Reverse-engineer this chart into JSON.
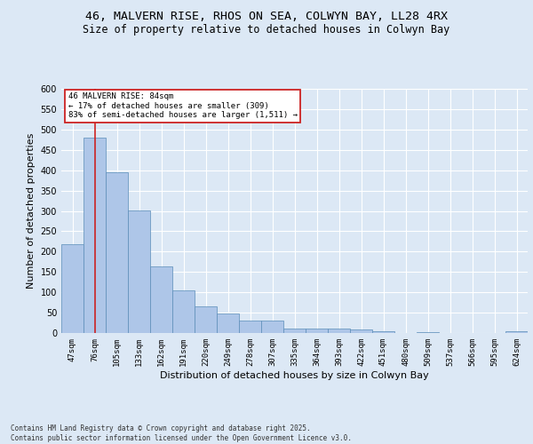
{
  "title_line1": "46, MALVERN RISE, RHOS ON SEA, COLWYN BAY, LL28 4RX",
  "title_line2": "Size of property relative to detached houses in Colwyn Bay",
  "xlabel": "Distribution of detached houses by size in Colwyn Bay",
  "ylabel": "Number of detached properties",
  "categories": [
    "47sqm",
    "76sqm",
    "105sqm",
    "133sqm",
    "162sqm",
    "191sqm",
    "220sqm",
    "249sqm",
    "278sqm",
    "307sqm",
    "335sqm",
    "364sqm",
    "393sqm",
    "422sqm",
    "451sqm",
    "480sqm",
    "509sqm",
    "537sqm",
    "566sqm",
    "595sqm",
    "624sqm"
  ],
  "values": [
    219,
    480,
    395,
    302,
    163,
    105,
    65,
    47,
    31,
    31,
    10,
    10,
    10,
    8,
    5,
    0,
    3,
    0,
    0,
    0,
    5
  ],
  "bar_color": "#aec6e8",
  "bar_edge_color": "#5b8db8",
  "background_color": "#dce8f5",
  "grid_color": "#ffffff",
  "fig_background": "#dce8f5",
  "vline_index": 1,
  "vline_color": "#cc2222",
  "annotation_line1": "46 MALVERN RISE: 84sqm",
  "annotation_line2": "← 17% of detached houses are smaller (309)",
  "annotation_line3": "83% of semi-detached houses are larger (1,511) →",
  "annotation_box_edgecolor": "#cc2222",
  "ylim": [
    0,
    600
  ],
  "yticks": [
    0,
    50,
    100,
    150,
    200,
    250,
    300,
    350,
    400,
    450,
    500,
    550,
    600
  ],
  "footnote_line1": "Contains HM Land Registry data © Crown copyright and database right 2025.",
  "footnote_line2": "Contains public sector information licensed under the Open Government Licence v3.0.",
  "title1_fontsize": 9.5,
  "title2_fontsize": 8.5,
  "ylabel_fontsize": 8,
  "xlabel_fontsize": 8,
  "ytick_fontsize": 7,
  "xtick_fontsize": 6.5,
  "annotation_fontsize": 6.5,
  "footnote_fontsize": 5.5
}
